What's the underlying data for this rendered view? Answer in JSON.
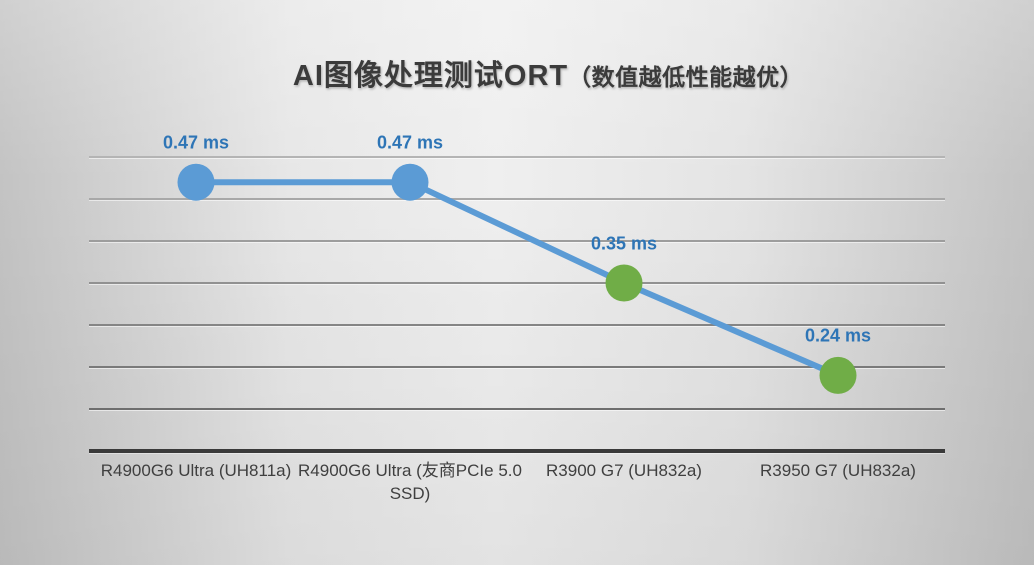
{
  "chart_data": {
    "type": "line",
    "title": "AI图像处理测试ORT",
    "title_note": "（数值越低性能越优）",
    "categories": [
      "R4900G6 Ultra (UH811a)",
      "R4900G6 Ultra (友商PCIe 5.0 SSD)",
      "R3900 G7 (UH832a)",
      "R3950 G7 (UH832a)"
    ],
    "values": [
      0.47,
      0.47,
      0.35,
      0.24
    ],
    "data_labels": [
      "0.47 ms",
      "0.47 ms",
      "0.35 ms",
      "0.24 ms"
    ],
    "unit": "ms",
    "xlabel": "",
    "ylabel": "",
    "ylim": [
      0.15,
      0.5
    ],
    "grid_interval": 0.05,
    "grid": true,
    "legend": "none",
    "marker_colors": [
      "#5B9BD5",
      "#5B9BD5",
      "#70AD47",
      "#70AD47"
    ],
    "colors": {
      "line": "#5B9BD5",
      "marker_blue": "#5B9BD5",
      "marker_green": "#70AD47",
      "data_label": "#2E75B6",
      "axis": "#3A3A3A",
      "category_label": "#3F3F3F",
      "title": "#3B3B3B"
    }
  }
}
